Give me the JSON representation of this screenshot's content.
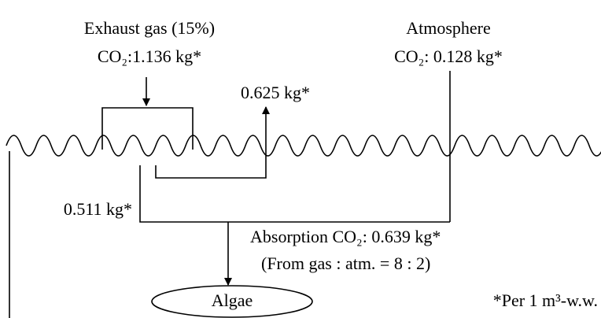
{
  "labels": {
    "exhaust_title": "Exhaust gas (15%)",
    "exhaust_co2": "CO₂:1.136 kg*",
    "atmosphere_title": "Atmosphere",
    "atmosphere_co2": "CO₂: 0.128 kg*",
    "released": "0.625 kg*",
    "from_gas": "0.511 kg*",
    "absorption": "Absorption CO₂: 0.639 kg*",
    "ratio": "(From gas : atm. = 8 : 2)",
    "algae": "Algae",
    "footnote": "*Per 1 m³-w.w."
  }
}
